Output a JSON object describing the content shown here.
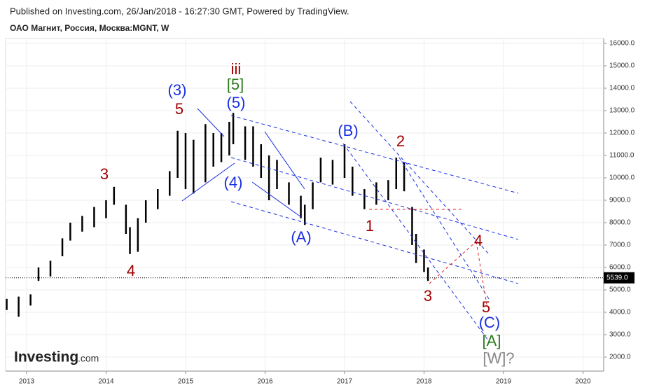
{
  "header": {
    "published": "Published on Investing.com, 26/Jan/2018 - 16:27:30 GMT, Powered by TradingView.",
    "symbol": "ОАО Магнит, Россия, Москва:MGNT, W"
  },
  "logo": {
    "brand": "Investing",
    "suffix": ".com"
  },
  "chart_data": {
    "type": "ohlc",
    "x": [
      2012.75,
      2012.9,
      2013.05,
      2013.15,
      2013.3,
      2013.45,
      2013.55,
      2013.7,
      2013.85,
      2014.0,
      2014.1,
      2014.25,
      2014.3,
      2014.4,
      2014.5,
      2014.65,
      2014.8,
      2014.9,
      2015.0,
      2015.1,
      2015.25,
      2015.35,
      2015.45,
      2015.55,
      2015.6,
      2015.75,
      2015.85,
      2015.95,
      2016.05,
      2016.15,
      2016.3,
      2016.45,
      2016.5,
      2016.6,
      2016.7,
      2016.85,
      2017.0,
      2017.1,
      2017.25,
      2017.4,
      2017.55,
      2017.65,
      2017.75,
      2017.85,
      2017.9,
      2018.0,
      2018.05
    ],
    "series": [
      {
        "name": "High",
        "values": [
          4600,
          4700,
          4800,
          6000,
          6300,
          7300,
          8000,
          8300,
          8700,
          9000,
          9600,
          8800,
          7800,
          8200,
          9000,
          9500,
          10300,
          12100,
          12000,
          11700,
          12400,
          12000,
          12000,
          12500,
          12900,
          12300,
          12300,
          11500,
          11000,
          10800,
          9800,
          9200,
          8800,
          9800,
          10900,
          10800,
          11500,
          10500,
          9500,
          9800,
          9900,
          10900,
          10700,
          8700,
          7500,
          6800,
          6000
        ]
      },
      {
        "name": "Low",
        "values": [
          4100,
          3800,
          4300,
          5400,
          5600,
          6500,
          7200,
          7600,
          7800,
          8200,
          8800,
          7500,
          6600,
          6700,
          8000,
          8600,
          9200,
          10000,
          9500,
          9300,
          9800,
          10500,
          10700,
          11000,
          11500,
          10800,
          10500,
          10000,
          9000,
          9500,
          8800,
          8200,
          7900,
          8600,
          9800,
          9700,
          10000,
          9200,
          8600,
          8800,
          9000,
          9500,
          9400,
          7000,
          6200,
          5800,
          5400
        ]
      }
    ],
    "color": "#000000",
    "xlim": [
      2012.736,
      2020.26
    ],
    "xticks": [
      2013,
      2014,
      2015,
      2016,
      2017,
      2018,
      2019,
      2020
    ],
    "ylim": [
      1375,
      16219
    ],
    "yticks": [
      {
        "value": 2000,
        "label": "2000.0"
      },
      {
        "value": 3000,
        "label": "3000.0"
      },
      {
        "value": 4000,
        "label": "4000.0"
      },
      {
        "value": 5000,
        "label": "5000.0"
      },
      {
        "value": 6000,
        "label": "6000.0"
      },
      {
        "value": 7000,
        "label": "7000.0"
      },
      {
        "value": 8000,
        "label": "8000.0"
      },
      {
        "value": 9000,
        "label": "9000.0"
      },
      {
        "value": 10000,
        "label": "10000.0"
      },
      {
        "value": 11000,
        "label": "11000.0"
      },
      {
        "value": 12000,
        "label": "12000.0"
      },
      {
        "value": 13000,
        "label": "13000.0"
      },
      {
        "value": 14000,
        "label": "14000.0"
      },
      {
        "value": 15000,
        "label": "15000.0"
      },
      {
        "value": 16000,
        "label": "16000.0"
      }
    ],
    "grid": true,
    "last_price": {
      "value": 5539,
      "label": "5539.0"
    },
    "annotations": [
      {
        "text": "iii",
        "color": "#a00000"
      },
      {
        "text": "[5]",
        "color": "#2e7d1e"
      },
      {
        "text": "(5)",
        "color": "#1a2fe0"
      },
      {
        "text": "(3)",
        "color": "#1a2fe0"
      },
      {
        "text": "5",
        "color": "#a00000"
      },
      {
        "text": "3",
        "color": "#a00000"
      },
      {
        "text": "4",
        "color": "#a00000"
      },
      {
        "text": "(4)",
        "color": "#1a2fe0"
      },
      {
        "text": "(A)",
        "color": "#1a2fe0"
      },
      {
        "text": "(B)",
        "color": "#1a2fe0"
      },
      {
        "text": "2",
        "color": "#a00000"
      },
      {
        "text": "1",
        "color": "#a00000"
      },
      {
        "text": "3",
        "color": "#a00000"
      },
      {
        "text": "4",
        "color": "#a00000"
      },
      {
        "text": "5",
        "color": "#a00000"
      },
      {
        "text": "(C)",
        "color": "#1a2fe0"
      },
      {
        "text": "[A]",
        "color": "#2e7d1e"
      },
      {
        "text": "[W]?",
        "color": "#888888"
      }
    ]
  }
}
